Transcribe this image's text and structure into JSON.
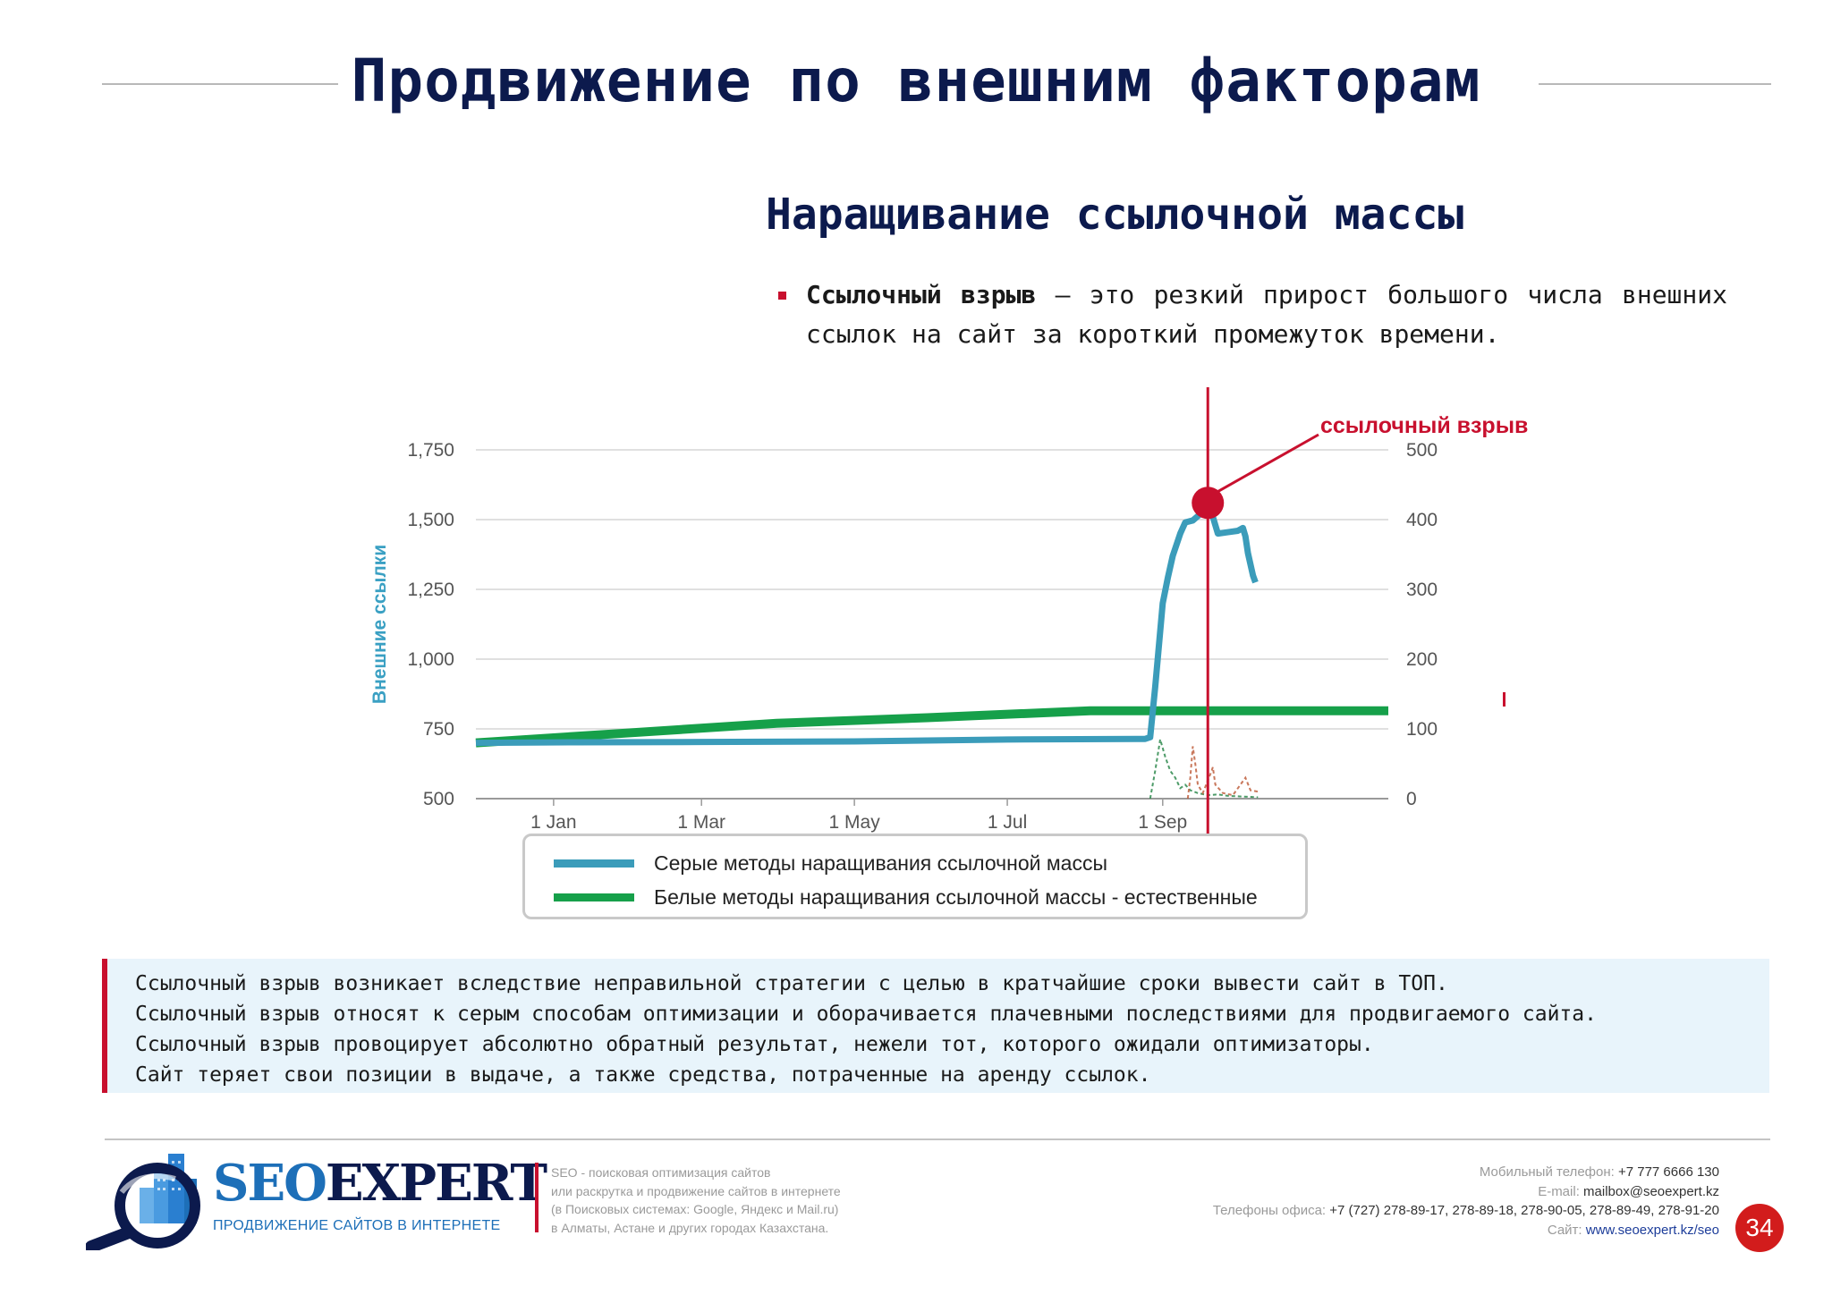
{
  "header": {
    "title": "Продвижение по внешним факторам",
    "subtitle": "Наращивание ссылочной массы"
  },
  "bullet": {
    "term": "Ссылочный взрыв",
    "text": " — это резкий прирост большого числа внешних ссылок на сайт за короткий промежуток времени."
  },
  "chart_data": {
    "type": "line",
    "title": "",
    "ylabel": "Внешние ссылки",
    "ylim": [
      500,
      1750
    ],
    "y_ticks": [
      "1,750",
      "1,500",
      "1,250",
      "1,000",
      "750",
      "500"
    ],
    "y2lim": [
      0,
      500
    ],
    "y2_ticks": [
      "500",
      "400",
      "300",
      "200",
      "100",
      "0"
    ],
    "x_ticks": [
      "1 Jan",
      "1 Mar",
      "1 May",
      "1 Jul",
      "1 Sep"
    ],
    "x_tick_days": [
      31,
      90,
      151,
      212,
      274
    ],
    "xlim_days": [
      0,
      364
    ],
    "annotation": {
      "label": "ссылочный взрыв",
      "x_day": 292,
      "y": 1560
    },
    "series": [
      {
        "name": "Серые методы наращивания ссылочной массы",
        "axis": "left",
        "color": "#3b9cba",
        "points": [
          [
            0,
            700
          ],
          [
            40,
            702
          ],
          [
            90,
            703
          ],
          [
            151,
            705
          ],
          [
            212,
            712
          ],
          [
            267,
            714
          ],
          [
            269,
            720
          ],
          [
            271,
            900
          ],
          [
            272,
            1000
          ],
          [
            274,
            1200
          ],
          [
            276,
            1290
          ],
          [
            278,
            1370
          ],
          [
            281,
            1450
          ],
          [
            283,
            1490
          ],
          [
            286,
            1497
          ],
          [
            289,
            1520
          ],
          [
            292,
            1550
          ],
          [
            294,
            1510
          ],
          [
            296,
            1450
          ],
          [
            300,
            1455
          ],
          [
            304,
            1460
          ],
          [
            306,
            1470
          ],
          [
            307,
            1440
          ],
          [
            308,
            1380
          ],
          [
            310,
            1300
          ],
          [
            311,
            1275
          ]
        ]
      },
      {
        "name": "Белые методы наращивания ссылочной массы - естественные",
        "axis": "left",
        "color": "#16a04a",
        "points": [
          [
            0,
            700
          ],
          [
            60,
            735
          ],
          [
            120,
            770
          ],
          [
            180,
            790
          ],
          [
            245,
            815
          ],
          [
            364,
            815
          ]
        ]
      }
    ],
    "minor_series": [
      {
        "axis": "right",
        "color": "#2e8a4e",
        "points": [
          [
            269,
            0
          ],
          [
            271,
            40
          ],
          [
            273,
            85
          ],
          [
            275,
            60
          ],
          [
            277,
            40
          ],
          [
            279,
            30
          ],
          [
            281,
            15
          ],
          [
            283,
            20
          ],
          [
            285,
            12
          ],
          [
            288,
            8
          ],
          [
            292,
            5
          ],
          [
            296,
            6
          ],
          [
            300,
            4
          ],
          [
            306,
            3
          ],
          [
            312,
            2
          ]
        ]
      },
      {
        "axis": "right",
        "color": "#c06040",
        "points": [
          [
            284,
            0
          ],
          [
            285,
            30
          ],
          [
            286,
            75
          ],
          [
            287,
            50
          ],
          [
            288,
            20
          ],
          [
            290,
            8
          ],
          [
            293,
            35
          ],
          [
            294,
            45
          ],
          [
            295,
            20
          ],
          [
            298,
            8
          ],
          [
            302,
            5
          ],
          [
            305,
            20
          ],
          [
            307,
            30
          ],
          [
            309,
            12
          ],
          [
            312,
            10
          ]
        ]
      }
    ]
  },
  "info": {
    "lines": [
      "Ссылочный взрыв возникает вследствие неправильной стратегии с целью в кратчайшие сроки вывести сайт в ТОП.",
      "Ссылочный взрыв относят к серым способам оптимизации и оборачивается плачевными последствиями для продвигаемого сайта.",
      "Ссылочный взрыв провоцирует абсолютно обратный результат, нежели тот, которого ожидали оптимизаторы.",
      "Сайт теряет свои позиции в выдаче, а также средства, потраченные на аренду ссылок."
    ]
  },
  "footer": {
    "logo_seo": "SEO",
    "logo_expert": "EXPERT",
    "logo_tagline": "ПРОДВИЖЕНИЕ САЙТОВ В ИНТЕРНЕТЕ",
    "desc": [
      "SEO - поисковая оптимизация сайтов",
      "или раскрутка и продвижение сайтов в интернете",
      "(в Поисковых системах: Google, Яндекс и Mail.ru)",
      "в Алматы, Астане и других городах Казахстана."
    ],
    "contacts": {
      "mobile_label": "Мобильный телефон: ",
      "mobile": "+7 777 6666 130",
      "email_label": "E-mail: ",
      "email": "mailbox@seoexpert.kz",
      "office_label": "Телефоны офиса: ",
      "office": "+7 (727) 278-89-17, 278-89-18, 278-90-05, 278-89-49, 278-91-20",
      "site_label": "Сайт: ",
      "site": "www.seoexpert.kz/seo"
    },
    "page_number": "34"
  },
  "colors": {
    "accent_red": "#c8102e",
    "navy": "#0c1a4d",
    "brand_blue": "#1d6fb8"
  }
}
